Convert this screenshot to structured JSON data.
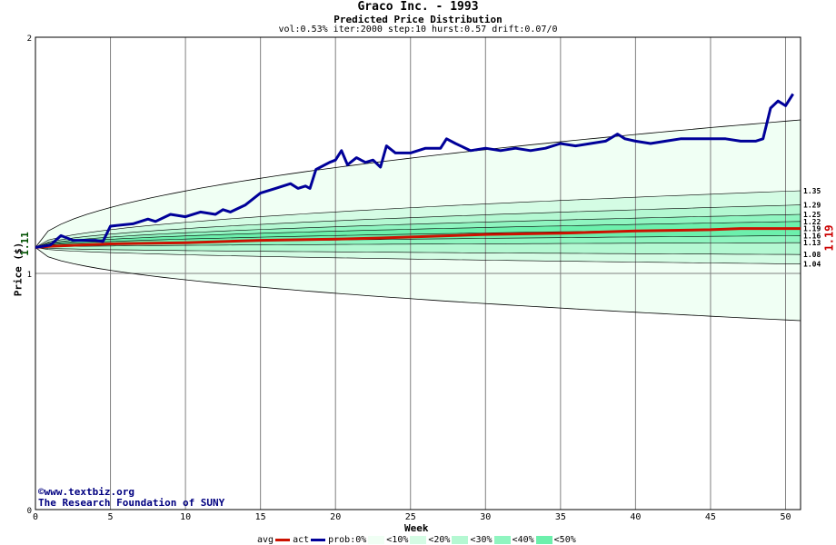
{
  "header": {
    "title": "Graco Inc. - 1993",
    "subtitle": "Predicted Price Distribution",
    "params": "vol:0.53% iter:2000 step:10 hurst:0.57 drift:0.07/0"
  },
  "credits": {
    "site": "©www.textbiz.org",
    "org": "The Research Foundation of SUNY"
  },
  "legend": {
    "avg": "avg",
    "act": "act",
    "prob": "prob:0%",
    "p10": "<10%",
    "p20": "<20%",
    "p30": "<30%",
    "p40": "<40%",
    "p50": "<50%"
  },
  "colors": {
    "avg": "#cc1100",
    "act": "#000099",
    "band0": "#f0fff4",
    "band10": "#d4fce4",
    "band20": "#b4f8d2",
    "band30": "#8ff5c0",
    "band40": "#6cf0ac",
    "grid": "#808080"
  },
  "chart_data": {
    "type": "line",
    "title": "Predicted Price Distribution",
    "xlabel": "Week",
    "ylabel": "Price ($)",
    "xlim": [
      0,
      51
    ],
    "ylim": [
      0,
      2
    ],
    "x_ticks": [
      0,
      5,
      10,
      15,
      20,
      25,
      30,
      35,
      40,
      45,
      50
    ],
    "y_ticks": [
      0,
      1,
      2
    ],
    "start_value": "1.11",
    "end_value": "1.19",
    "percentile_labels": [
      "1.35",
      "1.29",
      "1.25",
      "1.22",
      "1.19",
      "1.16",
      "1.13",
      "1.08",
      "1.04"
    ],
    "bands": {
      "outer_upper_end": 1.65,
      "outer_lower_end": 0.8,
      "levels_end": [
        1.35,
        1.29,
        1.25,
        1.22,
        1.19,
        1.16,
        1.13,
        1.08,
        1.04
      ],
      "start": 1.11
    },
    "series": [
      {
        "name": "avg",
        "points": [
          [
            0,
            1.11
          ],
          [
            1,
            1.115
          ],
          [
            3,
            1.12
          ],
          [
            5,
            1.125
          ],
          [
            10,
            1.13
          ],
          [
            15,
            1.14
          ],
          [
            20,
            1.145
          ],
          [
            23,
            1.15
          ],
          [
            30,
            1.165
          ],
          [
            35,
            1.17
          ],
          [
            40,
            1.18
          ],
          [
            45,
            1.185
          ],
          [
            47,
            1.19
          ],
          [
            51,
            1.19
          ]
        ]
      },
      {
        "name": "act",
        "points": [
          [
            0,
            1.11
          ],
          [
            1,
            1.12
          ],
          [
            1.7,
            1.16
          ],
          [
            2.5,
            1.14
          ],
          [
            3,
            1.14
          ],
          [
            4,
            1.14
          ],
          [
            4.5,
            1.135
          ],
          [
            5,
            1.2
          ],
          [
            6.5,
            1.21
          ],
          [
            7.5,
            1.23
          ],
          [
            8,
            1.22
          ],
          [
            9,
            1.25
          ],
          [
            10,
            1.24
          ],
          [
            11,
            1.26
          ],
          [
            12,
            1.25
          ],
          [
            12.5,
            1.27
          ],
          [
            13,
            1.26
          ],
          [
            14,
            1.29
          ],
          [
            15,
            1.34
          ],
          [
            16,
            1.36
          ],
          [
            17,
            1.38
          ],
          [
            17.5,
            1.36
          ],
          [
            18,
            1.37
          ],
          [
            18.3,
            1.36
          ],
          [
            18.7,
            1.44
          ],
          [
            19,
            1.45
          ],
          [
            19.6,
            1.47
          ],
          [
            20,
            1.48
          ],
          [
            20.4,
            1.52
          ],
          [
            20.8,
            1.46
          ],
          [
            21.4,
            1.49
          ],
          [
            22,
            1.47
          ],
          [
            22.5,
            1.48
          ],
          [
            23,
            1.45
          ],
          [
            23.4,
            1.54
          ],
          [
            24,
            1.51
          ],
          [
            25,
            1.51
          ],
          [
            26,
            1.53
          ],
          [
            27,
            1.53
          ],
          [
            27.4,
            1.57
          ],
          [
            28,
            1.55
          ],
          [
            29,
            1.52
          ],
          [
            30,
            1.53
          ],
          [
            31,
            1.52
          ],
          [
            32,
            1.53
          ],
          [
            33,
            1.52
          ],
          [
            34,
            1.53
          ],
          [
            35,
            1.55
          ],
          [
            36,
            1.54
          ],
          [
            37,
            1.55
          ],
          [
            38,
            1.56
          ],
          [
            38.8,
            1.59
          ],
          [
            39.3,
            1.57
          ],
          [
            40,
            1.56
          ],
          [
            41,
            1.55
          ],
          [
            42,
            1.56
          ],
          [
            43,
            1.57
          ],
          [
            44,
            1.57
          ],
          [
            45,
            1.57
          ],
          [
            46,
            1.57
          ],
          [
            47,
            1.56
          ],
          [
            48,
            1.56
          ],
          [
            48.5,
            1.57
          ],
          [
            49,
            1.7
          ],
          [
            49.5,
            1.73
          ],
          [
            50,
            1.71
          ],
          [
            50.5,
            1.76
          ]
        ]
      }
    ]
  }
}
